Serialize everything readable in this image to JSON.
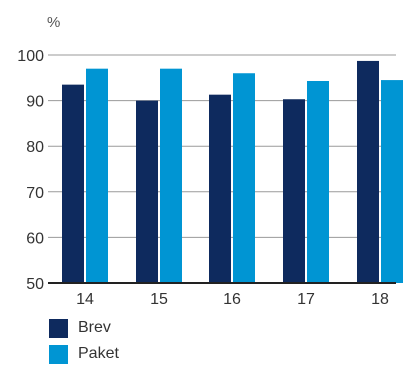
{
  "chart_data": {
    "type": "bar",
    "unit_label": "%",
    "categories": [
      "14",
      "15",
      "16",
      "17",
      "18"
    ],
    "series": [
      {
        "name": "Brev",
        "color": "#0e2a5e",
        "values": [
          93.5,
          90,
          91.3,
          90.3,
          98.7
        ]
      },
      {
        "name": "Paket",
        "color": "#0095d3",
        "values": [
          97,
          97,
          96,
          94.3,
          94.5
        ]
      }
    ],
    "ylim": [
      50,
      100
    ],
    "yticks": [
      50,
      60,
      70,
      80,
      90,
      100
    ],
    "grid": true,
    "legend_position": "bottom-left"
  }
}
